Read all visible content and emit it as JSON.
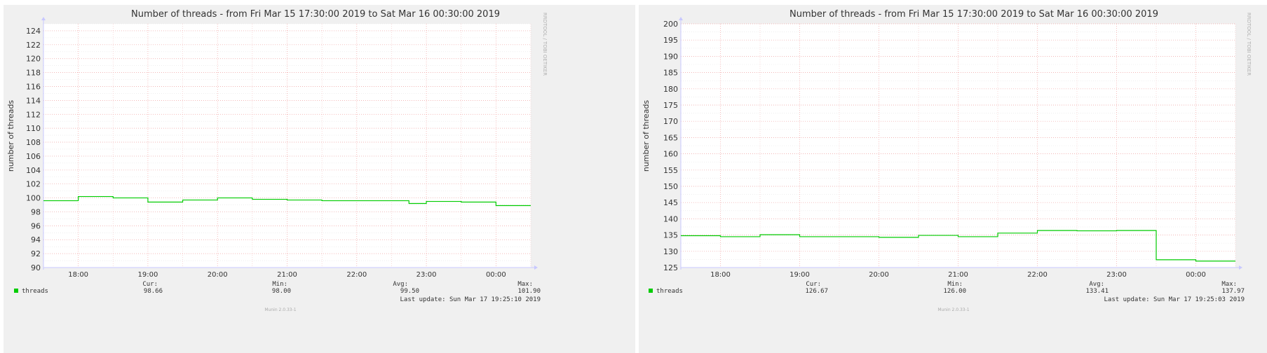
{
  "chart_data": [
    {
      "type": "line",
      "title": "Number of threads - from Fri Mar 15 17:30:00 2019 to Sat Mar 16 00:30:00 2019",
      "ylabel": "number of threads",
      "xlabel": "",
      "watermark": "RRDTOOL / TOBI OETIKER",
      "footer": "Munin 2.0.33-1",
      "x_range": [
        "2019-03-15 17:30",
        "2019-03-16 00:30"
      ],
      "x_ticks": [
        "18:00",
        "19:00",
        "20:00",
        "21:00",
        "22:00",
        "23:00",
        "00:00"
      ],
      "ylim": [
        90,
        125
      ],
      "y_ticks": [
        "90",
        "92",
        "94",
        "96",
        "98",
        "100",
        "102",
        "104",
        "106",
        "108",
        "110",
        "112",
        "114",
        "116",
        "118",
        "120",
        "122",
        "124"
      ],
      "grid": true,
      "series": [
        {
          "name": "threads",
          "color": "#00cc00",
          "step": true,
          "points": [
            [
              "17:30",
              99.6
            ],
            [
              "18:00",
              100.2
            ],
            [
              "18:30",
              100.0
            ],
            [
              "19:00",
              99.4
            ],
            [
              "19:30",
              99.7
            ],
            [
              "20:00",
              100.0
            ],
            [
              "20:30",
              99.8
            ],
            [
              "21:00",
              99.7
            ],
            [
              "21:30",
              99.6
            ],
            [
              "22:00",
              99.6
            ],
            [
              "22:45",
              99.2
            ],
            [
              "23:00",
              99.5
            ],
            [
              "23:30",
              99.4
            ],
            [
              "00:00",
              98.9
            ],
            [
              "00:30",
              98.9
            ]
          ]
        }
      ],
      "legend": {
        "label": "threads",
        "cur_label": "Cur:",
        "cur": "98.66",
        "min_label": "Min:",
        "min": "98.00",
        "avg_label": "Avg:",
        "avg": "99.50",
        "max_label": "Max:",
        "max": "101.90",
        "last_update": "Last update:  Sun Mar 17 19:25:10 2019"
      }
    },
    {
      "type": "line",
      "title": "Number of threads - from Fri Mar 15 17:30:00 2019 to Sat Mar 16 00:30:00 2019",
      "ylabel": "number of threads",
      "xlabel": "",
      "watermark": "RRDTOOL / TOBI OETIKER",
      "footer": "Munin 2.0.33-1",
      "x_range": [
        "2019-03-15 17:30",
        "2019-03-16 00:30"
      ],
      "x_ticks": [
        "18:00",
        "19:00",
        "20:00",
        "21:00",
        "22:00",
        "23:00",
        "00:00"
      ],
      "ylim": [
        125,
        200
      ],
      "y_ticks": [
        "125",
        "130",
        "135",
        "140",
        "145",
        "150",
        "155",
        "160",
        "165",
        "170",
        "175",
        "180",
        "185",
        "190",
        "195",
        "200"
      ],
      "grid": true,
      "series": [
        {
          "name": "threads",
          "color": "#00cc00",
          "step": true,
          "points": [
            [
              "17:30",
              134.8
            ],
            [
              "18:00",
              134.5
            ],
            [
              "18:30",
              135.1
            ],
            [
              "19:00",
              134.5
            ],
            [
              "20:00",
              134.3
            ],
            [
              "20:30",
              134.9
            ],
            [
              "21:00",
              134.5
            ],
            [
              "21:30",
              135.6
            ],
            [
              "22:00",
              136.4
            ],
            [
              "22:30",
              136.3
            ],
            [
              "23:00",
              136.4
            ],
            [
              "23:30",
              127.4
            ],
            [
              "00:00",
              127.0
            ],
            [
              "00:30",
              127.0
            ]
          ]
        }
      ],
      "legend": {
        "label": "threads",
        "cur_label": "Cur:",
        "cur": "126.67",
        "min_label": "Min:",
        "min": "126.00",
        "avg_label": "Avg:",
        "avg": "133.41",
        "max_label": "Max:",
        "max": "137.97",
        "last_update": "Last update:  Sun Mar 17 19:25:03 2019"
      }
    }
  ]
}
